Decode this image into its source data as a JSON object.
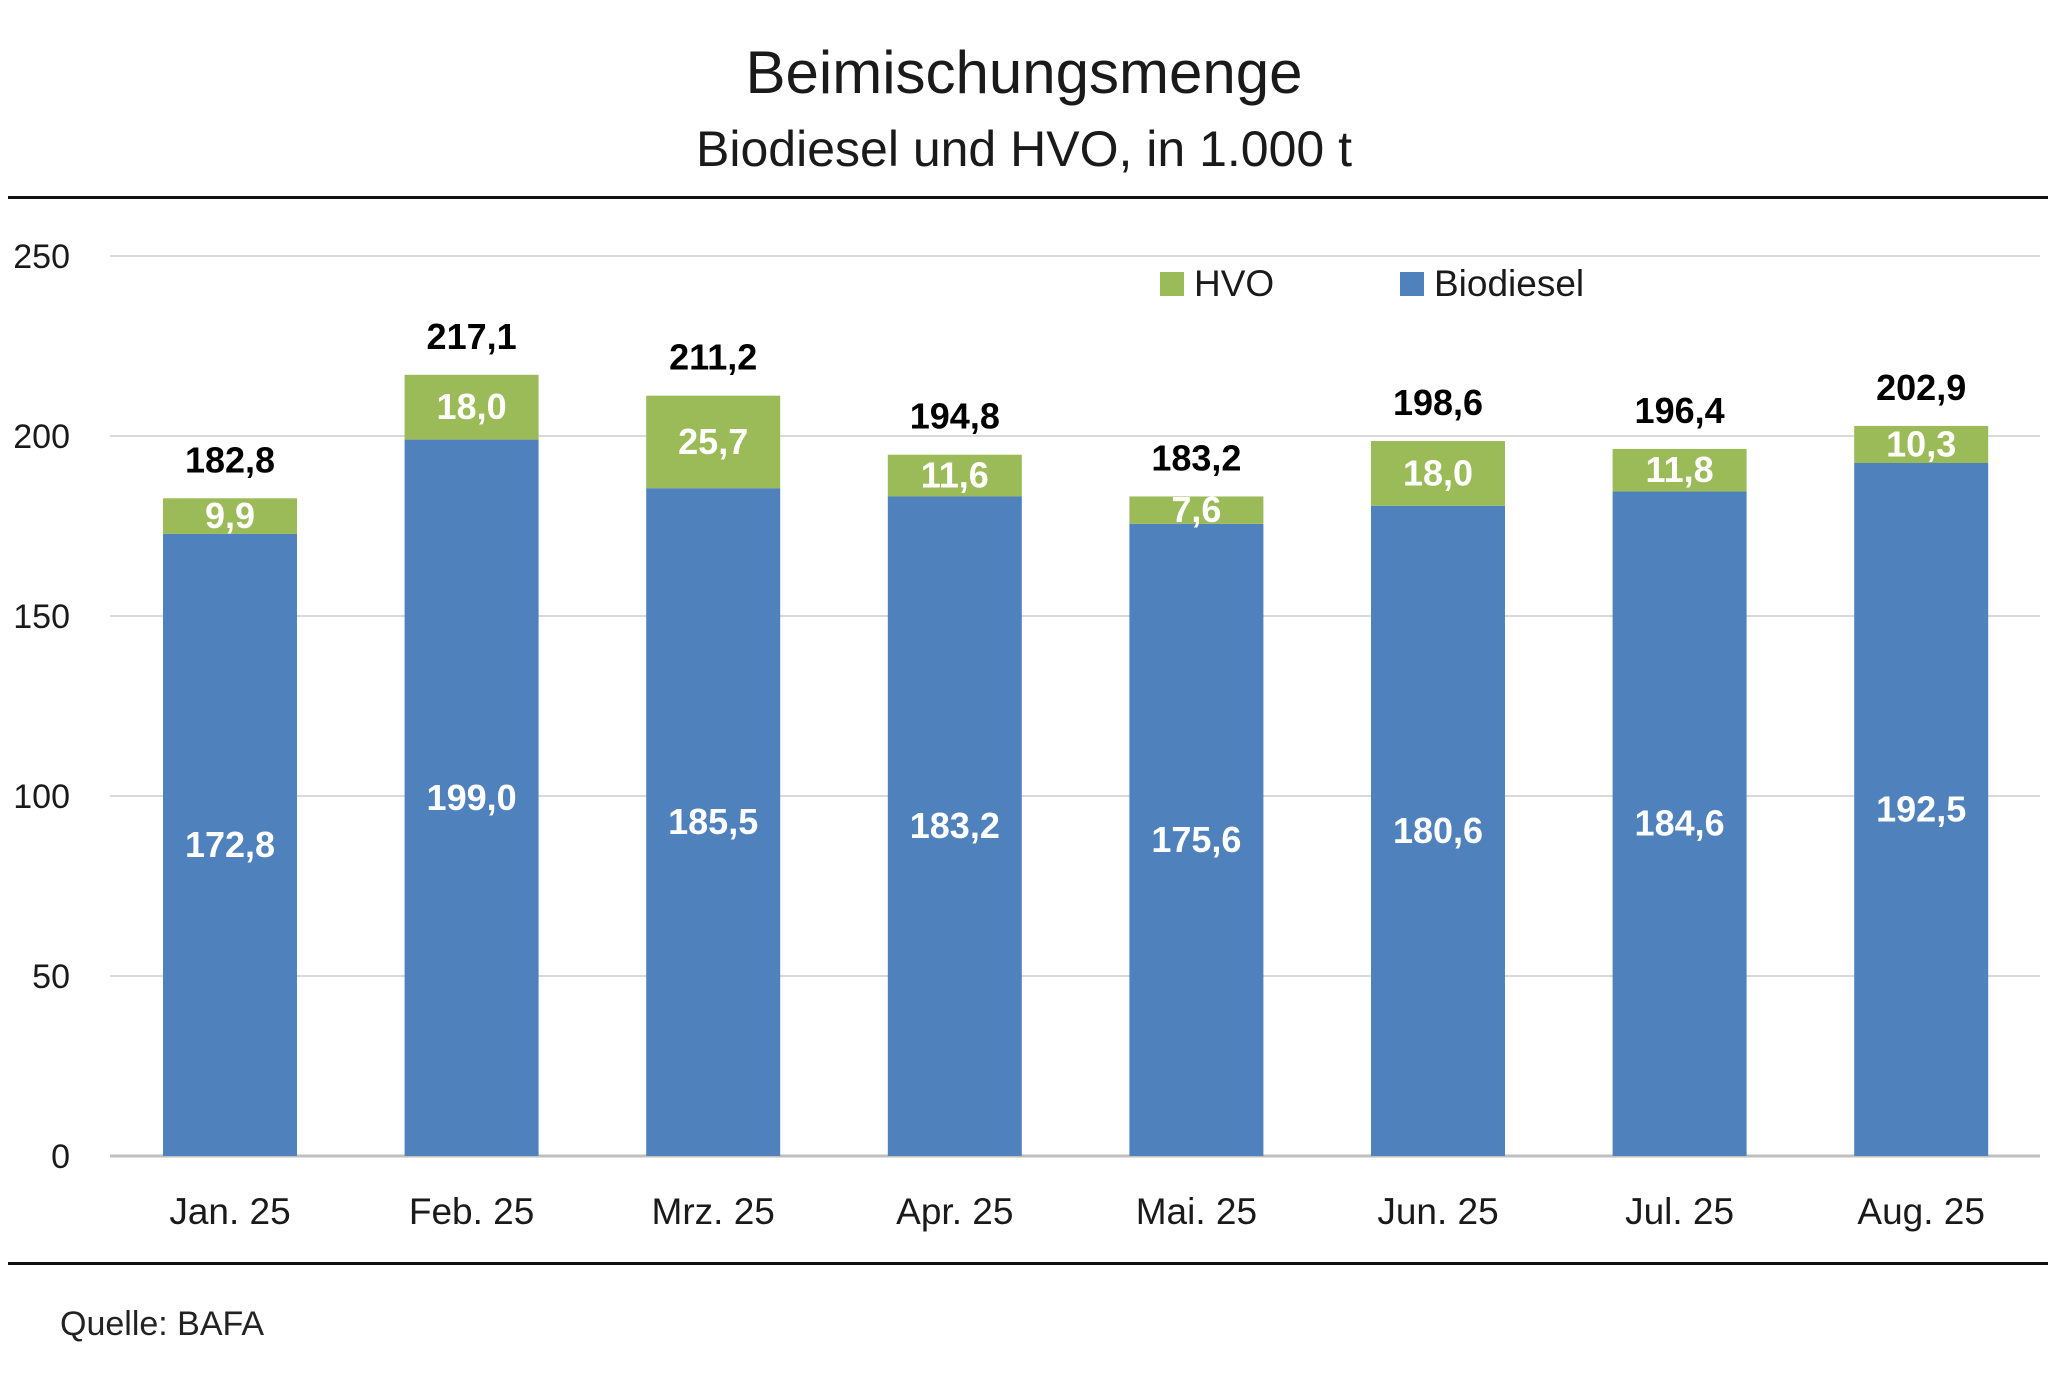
{
  "chart_data": {
    "type": "bar",
    "stacked": true,
    "title": "Beimischungsmenge",
    "subtitle": "Biodiesel und HVO, in 1.000 t",
    "source": "Quelle: BAFA",
    "categories": [
      "Jan. 25",
      "Feb. 25",
      "Mrz. 25",
      "Apr. 25",
      "Mai. 25",
      "Jun. 25",
      "Jul. 25",
      "Aug. 25"
    ],
    "series": [
      {
        "name": "Biodiesel",
        "color": "#4f81bd",
        "values": [
          172.8,
          199.0,
          185.5,
          183.2,
          175.6,
          180.6,
          184.6,
          192.5
        ],
        "labels": [
          "172,8",
          "199,0",
          "185,5",
          "183,2",
          "175,6",
          "180,6",
          "184,6",
          "192,5"
        ]
      },
      {
        "name": "HVO",
        "color": "#9bbb59",
        "values": [
          9.9,
          18.0,
          25.7,
          11.6,
          7.6,
          18.0,
          11.8,
          10.3
        ],
        "labels": [
          "9,9",
          "18,0",
          "25,7",
          "11,6",
          "7,6",
          "18,0",
          "11,8",
          "10,3"
        ]
      }
    ],
    "totals": [
      182.8,
      217.1,
      211.2,
      194.8,
      183.2,
      198.6,
      196.4,
      202.9
    ],
    "total_labels": [
      "182,8",
      "217,1",
      "211,2",
      "194,8",
      "183,2",
      "198,6",
      "196,4",
      "202,9"
    ],
    "ylim": [
      0,
      250
    ],
    "yticks": [
      0,
      50,
      100,
      150,
      200,
      250
    ],
    "grid": true,
    "legend_position": "top-right"
  }
}
